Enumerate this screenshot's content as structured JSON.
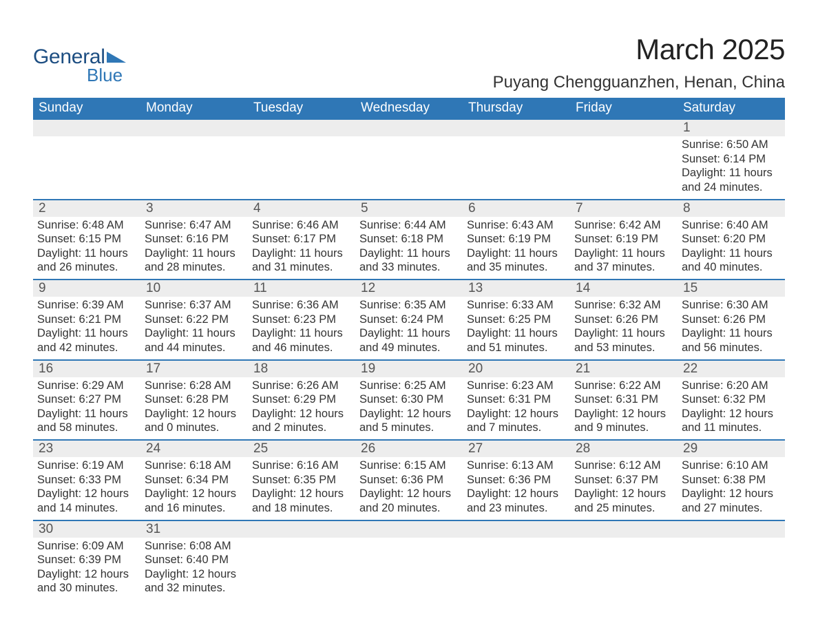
{
  "brand": {
    "text1": "General",
    "text2": "Blue",
    "triangle_color": "#2f77b6"
  },
  "title": {
    "month": "March 2025",
    "location": "Puyang Chengguanzhen, Henan, China"
  },
  "colors": {
    "header_bg": "#2f77b6",
    "header_fg": "#ffffff",
    "daynum_bg": "#ededed",
    "row_border": "#2f77b6",
    "body_bg": "#ffffff",
    "text": "#333333"
  },
  "typography": {
    "title_fontsize_pt": 32,
    "location_fontsize_pt": 18,
    "header_fontsize_pt": 14,
    "daynum_fontsize_pt": 14,
    "body_fontsize_pt": 12
  },
  "layout": {
    "columns": 7,
    "weeks": 6,
    "start_weekday": "Sunday"
  },
  "weekdays": [
    "Sunday",
    "Monday",
    "Tuesday",
    "Wednesday",
    "Thursday",
    "Friday",
    "Saturday"
  ],
  "weeks": [
    [
      null,
      null,
      null,
      null,
      null,
      null,
      {
        "num": "1",
        "sunrise": "Sunrise: 6:50 AM",
        "sunset": "Sunset: 6:14 PM",
        "dl1": "Daylight: 11 hours",
        "dl2": "and 24 minutes."
      }
    ],
    [
      {
        "num": "2",
        "sunrise": "Sunrise: 6:48 AM",
        "sunset": "Sunset: 6:15 PM",
        "dl1": "Daylight: 11 hours",
        "dl2": "and 26 minutes."
      },
      {
        "num": "3",
        "sunrise": "Sunrise: 6:47 AM",
        "sunset": "Sunset: 6:16 PM",
        "dl1": "Daylight: 11 hours",
        "dl2": "and 28 minutes."
      },
      {
        "num": "4",
        "sunrise": "Sunrise: 6:46 AM",
        "sunset": "Sunset: 6:17 PM",
        "dl1": "Daylight: 11 hours",
        "dl2": "and 31 minutes."
      },
      {
        "num": "5",
        "sunrise": "Sunrise: 6:44 AM",
        "sunset": "Sunset: 6:18 PM",
        "dl1": "Daylight: 11 hours",
        "dl2": "and 33 minutes."
      },
      {
        "num": "6",
        "sunrise": "Sunrise: 6:43 AM",
        "sunset": "Sunset: 6:19 PM",
        "dl1": "Daylight: 11 hours",
        "dl2": "and 35 minutes."
      },
      {
        "num": "7",
        "sunrise": "Sunrise: 6:42 AM",
        "sunset": "Sunset: 6:19 PM",
        "dl1": "Daylight: 11 hours",
        "dl2": "and 37 minutes."
      },
      {
        "num": "8",
        "sunrise": "Sunrise: 6:40 AM",
        "sunset": "Sunset: 6:20 PM",
        "dl1": "Daylight: 11 hours",
        "dl2": "and 40 minutes."
      }
    ],
    [
      {
        "num": "9",
        "sunrise": "Sunrise: 6:39 AM",
        "sunset": "Sunset: 6:21 PM",
        "dl1": "Daylight: 11 hours",
        "dl2": "and 42 minutes."
      },
      {
        "num": "10",
        "sunrise": "Sunrise: 6:37 AM",
        "sunset": "Sunset: 6:22 PM",
        "dl1": "Daylight: 11 hours",
        "dl2": "and 44 minutes."
      },
      {
        "num": "11",
        "sunrise": "Sunrise: 6:36 AM",
        "sunset": "Sunset: 6:23 PM",
        "dl1": "Daylight: 11 hours",
        "dl2": "and 46 minutes."
      },
      {
        "num": "12",
        "sunrise": "Sunrise: 6:35 AM",
        "sunset": "Sunset: 6:24 PM",
        "dl1": "Daylight: 11 hours",
        "dl2": "and 49 minutes."
      },
      {
        "num": "13",
        "sunrise": "Sunrise: 6:33 AM",
        "sunset": "Sunset: 6:25 PM",
        "dl1": "Daylight: 11 hours",
        "dl2": "and 51 minutes."
      },
      {
        "num": "14",
        "sunrise": "Sunrise: 6:32 AM",
        "sunset": "Sunset: 6:26 PM",
        "dl1": "Daylight: 11 hours",
        "dl2": "and 53 minutes."
      },
      {
        "num": "15",
        "sunrise": "Sunrise: 6:30 AM",
        "sunset": "Sunset: 6:26 PM",
        "dl1": "Daylight: 11 hours",
        "dl2": "and 56 minutes."
      }
    ],
    [
      {
        "num": "16",
        "sunrise": "Sunrise: 6:29 AM",
        "sunset": "Sunset: 6:27 PM",
        "dl1": "Daylight: 11 hours",
        "dl2": "and 58 minutes."
      },
      {
        "num": "17",
        "sunrise": "Sunrise: 6:28 AM",
        "sunset": "Sunset: 6:28 PM",
        "dl1": "Daylight: 12 hours",
        "dl2": "and 0 minutes."
      },
      {
        "num": "18",
        "sunrise": "Sunrise: 6:26 AM",
        "sunset": "Sunset: 6:29 PM",
        "dl1": "Daylight: 12 hours",
        "dl2": "and 2 minutes."
      },
      {
        "num": "19",
        "sunrise": "Sunrise: 6:25 AM",
        "sunset": "Sunset: 6:30 PM",
        "dl1": "Daylight: 12 hours",
        "dl2": "and 5 minutes."
      },
      {
        "num": "20",
        "sunrise": "Sunrise: 6:23 AM",
        "sunset": "Sunset: 6:31 PM",
        "dl1": "Daylight: 12 hours",
        "dl2": "and 7 minutes."
      },
      {
        "num": "21",
        "sunrise": "Sunrise: 6:22 AM",
        "sunset": "Sunset: 6:31 PM",
        "dl1": "Daylight: 12 hours",
        "dl2": "and 9 minutes."
      },
      {
        "num": "22",
        "sunrise": "Sunrise: 6:20 AM",
        "sunset": "Sunset: 6:32 PM",
        "dl1": "Daylight: 12 hours",
        "dl2": "and 11 minutes."
      }
    ],
    [
      {
        "num": "23",
        "sunrise": "Sunrise: 6:19 AM",
        "sunset": "Sunset: 6:33 PM",
        "dl1": "Daylight: 12 hours",
        "dl2": "and 14 minutes."
      },
      {
        "num": "24",
        "sunrise": "Sunrise: 6:18 AM",
        "sunset": "Sunset: 6:34 PM",
        "dl1": "Daylight: 12 hours",
        "dl2": "and 16 minutes."
      },
      {
        "num": "25",
        "sunrise": "Sunrise: 6:16 AM",
        "sunset": "Sunset: 6:35 PM",
        "dl1": "Daylight: 12 hours",
        "dl2": "and 18 minutes."
      },
      {
        "num": "26",
        "sunrise": "Sunrise: 6:15 AM",
        "sunset": "Sunset: 6:36 PM",
        "dl1": "Daylight: 12 hours",
        "dl2": "and 20 minutes."
      },
      {
        "num": "27",
        "sunrise": "Sunrise: 6:13 AM",
        "sunset": "Sunset: 6:36 PM",
        "dl1": "Daylight: 12 hours",
        "dl2": "and 23 minutes."
      },
      {
        "num": "28",
        "sunrise": "Sunrise: 6:12 AM",
        "sunset": "Sunset: 6:37 PM",
        "dl1": "Daylight: 12 hours",
        "dl2": "and 25 minutes."
      },
      {
        "num": "29",
        "sunrise": "Sunrise: 6:10 AM",
        "sunset": "Sunset: 6:38 PM",
        "dl1": "Daylight: 12 hours",
        "dl2": "and 27 minutes."
      }
    ],
    [
      {
        "num": "30",
        "sunrise": "Sunrise: 6:09 AM",
        "sunset": "Sunset: 6:39 PM",
        "dl1": "Daylight: 12 hours",
        "dl2": "and 30 minutes."
      },
      {
        "num": "31",
        "sunrise": "Sunrise: 6:08 AM",
        "sunset": "Sunset: 6:40 PM",
        "dl1": "Daylight: 12 hours",
        "dl2": "and 32 minutes."
      },
      null,
      null,
      null,
      null,
      null
    ]
  ]
}
